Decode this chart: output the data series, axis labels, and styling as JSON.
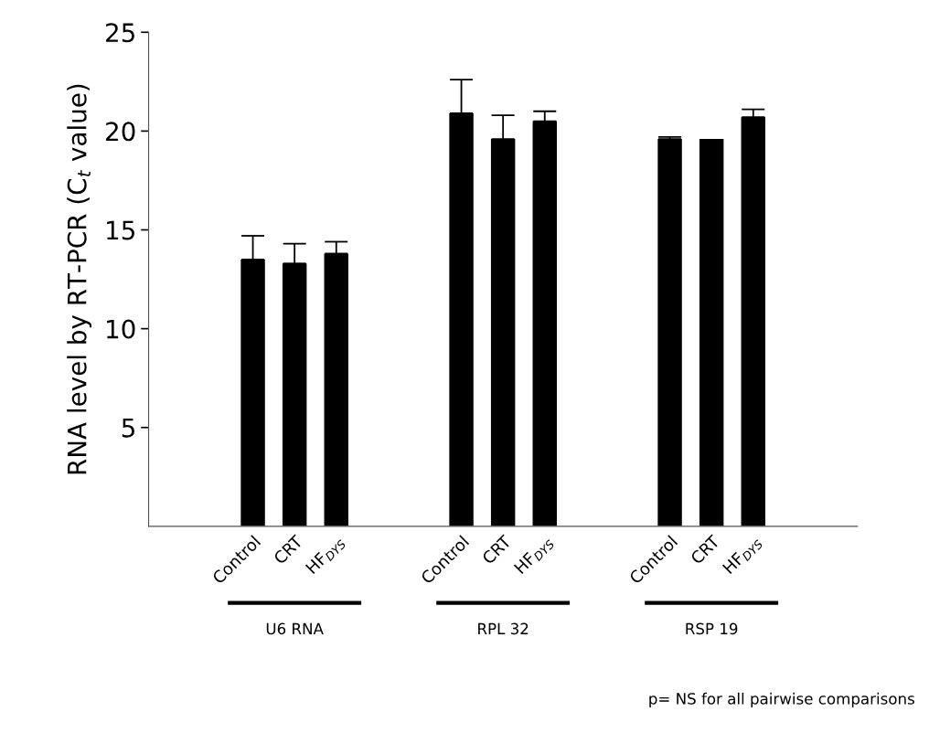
{
  "chart_data": {
    "type": "bar",
    "ylabel": "RNA level by RT-PCR (C$_{t}$ value)",
    "categories": [
      "Control",
      "CRT",
      "HF$_{DYS}$",
      null,
      null,
      "Control",
      "CRT",
      "HF$_{DYS}$",
      null,
      null,
      "Control",
      "CRT",
      "HF$_{DYS}$"
    ],
    "values": [
      13.5,
      13.3,
      13.8,
      null,
      null,
      20.9,
      19.6,
      20.5,
      null,
      null,
      19.6,
      19.6,
      20.7
    ],
    "errors": [
      [
        13.5,
        14.7
      ],
      [
        13.3,
        14.3
      ],
      [
        13.8,
        14.4
      ],
      null,
      null,
      [
        20.9,
        22.6
      ],
      [
        19.6,
        20.8
      ],
      [
        20.5,
        21.0
      ],
      null,
      null,
      [
        19.6,
        19.7
      ],
      null,
      [
        20.7,
        21.1
      ]
    ],
    "color": "#000000",
    "ylim": [
      0,
      25
    ],
    "yticks": [
      5,
      10,
      15,
      20,
      25
    ],
    "grid": false,
    "annotations": [
      "U6 RNA",
      "RPL 32",
      "RSP 19",
      "p= NS for all pairwise comparisons"
    ]
  }
}
